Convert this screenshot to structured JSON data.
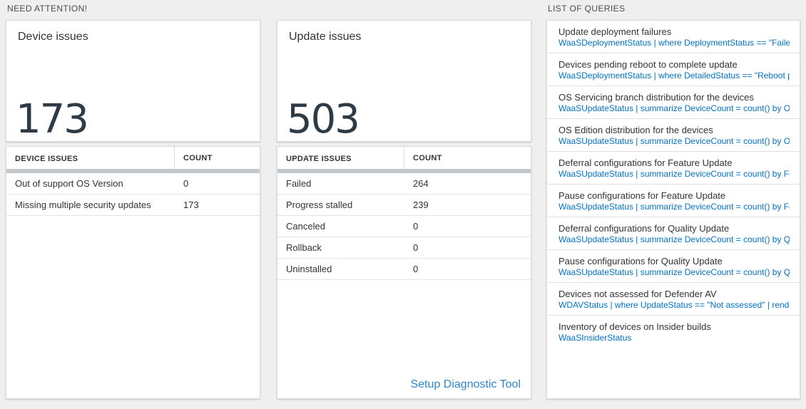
{
  "sections": {
    "need_attention": "NEED ATTENTION!",
    "list_of_queries": "LIST OF QUERIES"
  },
  "device_card": {
    "title": "Device issues",
    "count": "173"
  },
  "device_table": {
    "headers": [
      "DEVICE ISSUES",
      "COUNT"
    ],
    "rows": [
      {
        "label": "Out of support OS Version",
        "count": "0"
      },
      {
        "label": "Missing multiple security updates",
        "count": "173"
      }
    ]
  },
  "update_card": {
    "title": "Update issues",
    "count": "503"
  },
  "update_table": {
    "headers": [
      "UPDATE ISSUES",
      "COUNT"
    ],
    "rows": [
      {
        "label": "Failed",
        "count": "264"
      },
      {
        "label": "Progress stalled",
        "count": "239"
      },
      {
        "label": "Canceled",
        "count": "0"
      },
      {
        "label": "Rollback",
        "count": "0"
      },
      {
        "label": "Uninstalled",
        "count": "0"
      }
    ],
    "footer_link": "Setup Diagnostic Tool"
  },
  "queries": {
    "items": [
      {
        "title": "Update deployment failures",
        "query": "WaaSDeploymentStatus | where DeploymentStatus == \"Failed\" |..."
      },
      {
        "title": "Devices pending reboot to complete update",
        "query": "WaaSDeploymentStatus | where DetailedStatus == \"Reboot pend..."
      },
      {
        "title": "OS Servicing branch distribution for the devices",
        "query": "WaaSUpdateStatus | summarize DeviceCount = count() by OSSer..."
      },
      {
        "title": "OS Edition distribution for the devices",
        "query": "WaaSUpdateStatus | summarize DeviceCount = count() by OSEdit..."
      },
      {
        "title": "Deferral configurations for Feature Update",
        "query": "WaaSUpdateStatus | summarize DeviceCount = count() by Featur..."
      },
      {
        "title": "Pause configurations for Feature Update",
        "query": "WaaSUpdateStatus | summarize DeviceCount = count() by Featur..."
      },
      {
        "title": "Deferral configurations for Quality Update",
        "query": "WaaSUpdateStatus | summarize DeviceCount = count() by Qualit..."
      },
      {
        "title": "Pause configurations for Quality Update",
        "query": "WaaSUpdateStatus | summarize DeviceCount = count() by Qualit..."
      },
      {
        "title": "Devices not assessed for Defender AV",
        "query": "WDAVStatus | where UpdateStatus == \"Not assessed\" | render ta..."
      },
      {
        "title": "Inventory of devices on Insider builds",
        "query": "WaaSInsiderStatus"
      }
    ]
  }
}
